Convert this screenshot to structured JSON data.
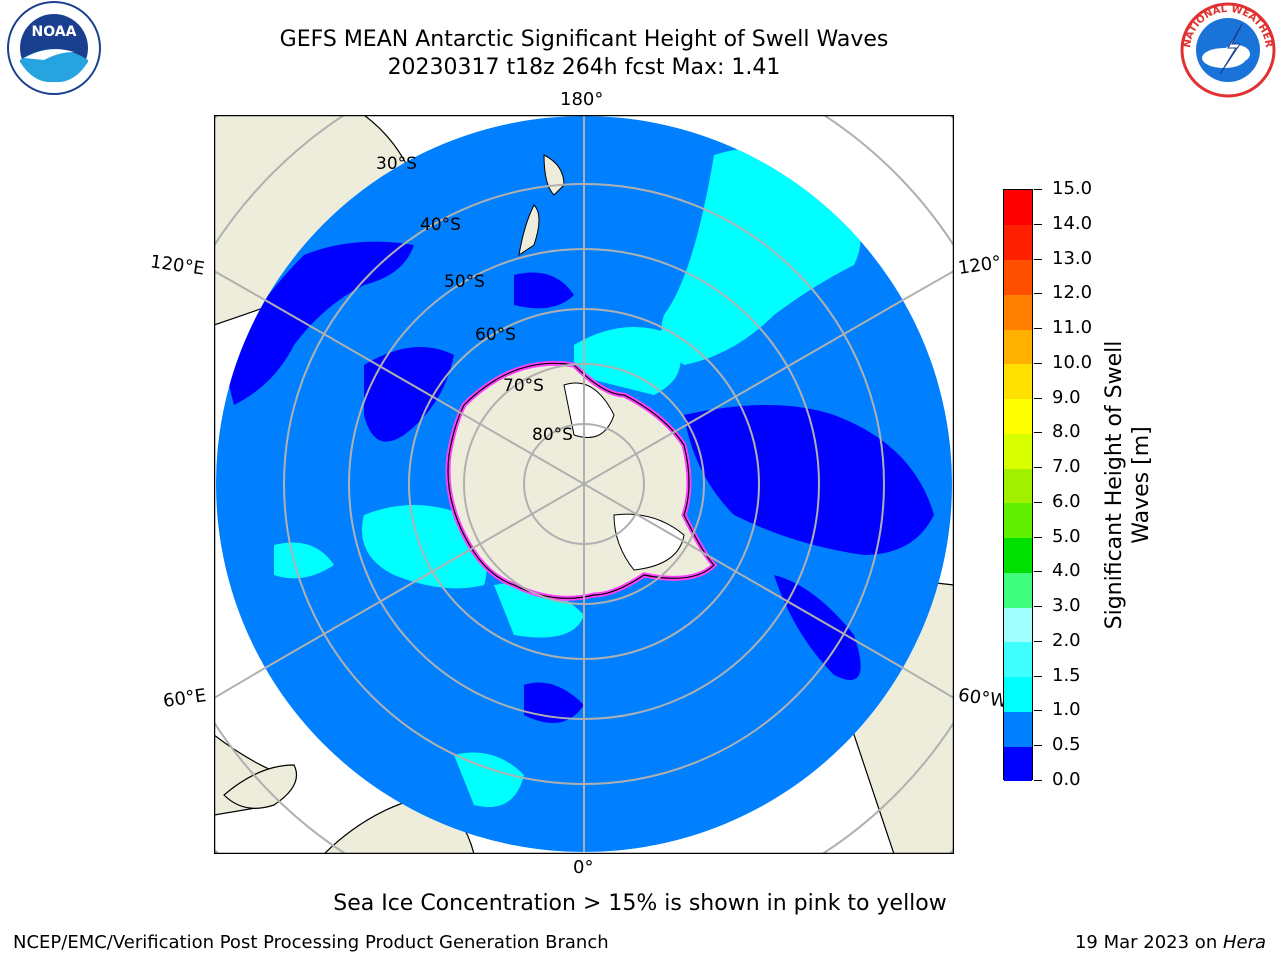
{
  "title": {
    "line1": "GEFS MEAN Antarctic Significant Height of Swell Waves",
    "line2": "20230317 t18z 264h fcst   Max: 1.41"
  },
  "logos": {
    "noaa_text": "NOAA",
    "nws_text": "NATIONAL WEATHER SERVICE"
  },
  "map": {
    "projection": "south-polar-stereographic",
    "longitude_labels": [
      "180°",
      "120°E",
      "120°",
      "60°E",
      "60°W",
      "0°"
    ],
    "latitude_labels": [
      "30°S",
      "40°S",
      "50°S",
      "60°S",
      "70°S",
      "80°S"
    ],
    "colors": {
      "land": "#eeeddc",
      "ocean_base": "#0080ff",
      "low_swell": "#0000ff",
      "mid_swell": "#00ffff",
      "ice_white": "#ffffff",
      "ice_pink": "#ff40ff",
      "grid": "#b0b0b0"
    }
  },
  "colorbar": {
    "title_line1": "Significant Height of Swell",
    "title_line2": "Waves [m]",
    "ticks": [
      "0.0",
      "0.5",
      "1.0",
      "1.5",
      "2.0",
      "3.0",
      "4.0",
      "5.0",
      "6.0",
      "7.0",
      "8.0",
      "9.0",
      "10.0",
      "11.0",
      "12.0",
      "13.0",
      "14.0",
      "15.0"
    ],
    "colors": [
      "#0000ff",
      "#0080ff",
      "#00ffff",
      "#40ffff",
      "#a0ffff",
      "#40ff80",
      "#00e000",
      "#60f000",
      "#a0f000",
      "#d8ff00",
      "#ffff00",
      "#ffe000",
      "#ffb000",
      "#ff8000",
      "#ff5000",
      "#ff2000",
      "#ff0000"
    ]
  },
  "footnote": "Sea Ice Concentration > 15% is shown in pink to yellow",
  "credit_left": "NCEP/EMC/Verification Post Processing Product Generation Branch",
  "credit_right_date": "19 Mar 2023 on ",
  "credit_right_host": "Hera"
}
